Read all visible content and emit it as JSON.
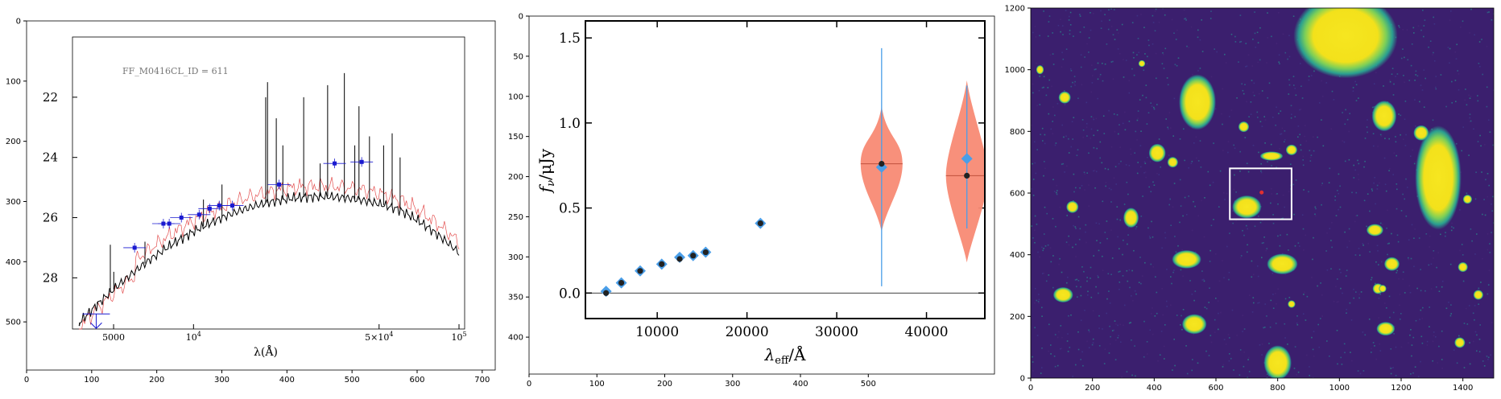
{
  "chart_data": [
    {
      "type": "scatter",
      "panel": "sed-image",
      "x_ticks": [
        0,
        100,
        200,
        300,
        400,
        500,
        600,
        700
      ],
      "y_ticks": [
        0,
        100,
        200,
        300,
        400,
        500
      ],
      "xlim": [
        0,
        720
      ],
      "ylim": [
        580,
        0
      ],
      "inner": {
        "title": "FF_M0416CL_ID = 611",
        "xlabel": "λ(Å)",
        "x_tick_labels": [
          "5000",
          "10^4",
          "5×10^4",
          "10^5"
        ],
        "x_tick_values": [
          5000,
          10000,
          50000,
          100000
        ],
        "y_tick_labels": [
          "22",
          "24",
          "26",
          "28"
        ],
        "y_tick_values": [
          22,
          24,
          26,
          28
        ],
        "xlim": [
          3500,
          105000
        ],
        "ylim": [
          20.0,
          29.7
        ],
        "photometry_ab": [
          {
            "x": 6000,
            "y": 27.0
          },
          {
            "x": 7700,
            "y": 26.2
          },
          {
            "x": 8100,
            "y": 26.2
          },
          {
            "x": 9000,
            "y": 26.0
          },
          {
            "x": 10500,
            "y": 25.9
          },
          {
            "x": 11500,
            "y": 25.7
          },
          {
            "x": 12500,
            "y": 25.6
          },
          {
            "x": 14000,
            "y": 25.6
          },
          {
            "x": 21000,
            "y": 24.9
          },
          {
            "x": 34000,
            "y": 24.2
          },
          {
            "x": 43000,
            "y": 24.15
          }
        ],
        "upper_limit": {
          "x": 4300,
          "y": 29.2
        }
      }
    },
    {
      "type": "scatter",
      "panel": "flux-violin",
      "xlabel": "λ_eff/Å",
      "ylabel": "f_ν/μJy",
      "x_ticks": [
        10000,
        20000,
        30000,
        40000
      ],
      "y_ticks": [
        0.0,
        0.5,
        1.0,
        1.5
      ],
      "xlim": [
        2000,
        46500
      ],
      "ylim": [
        -0.15,
        1.6
      ],
      "outer_x_ticks": [
        0,
        100,
        200,
        300,
        400,
        500
      ],
      "outer_y_ticks": [
        0,
        50,
        100,
        150,
        200,
        250,
        300,
        350,
        400
      ],
      "observed": [
        {
          "x": 4300,
          "y": 0.01
        },
        {
          "x": 6000,
          "y": 0.06
        },
        {
          "x": 8100,
          "y": 0.13
        },
        {
          "x": 10500,
          "y": 0.17
        },
        {
          "x": 12500,
          "y": 0.21
        },
        {
          "x": 14000,
          "y": 0.22
        },
        {
          "x": 15400,
          "y": 0.24
        },
        {
          "x": 21500,
          "y": 0.41
        },
        {
          "x": 35000,
          "y": 0.74
        },
        {
          "x": 44500,
          "y": 0.79
        }
      ],
      "model": [
        {
          "x": 4300,
          "y": 0.0
        },
        {
          "x": 6000,
          "y": 0.06
        },
        {
          "x": 8100,
          "y": 0.13
        },
        {
          "x": 10500,
          "y": 0.17
        },
        {
          "x": 12500,
          "y": 0.2
        },
        {
          "x": 14000,
          "y": 0.22
        },
        {
          "x": 15400,
          "y": 0.24
        },
        {
          "x": 21500,
          "y": 0.41
        },
        {
          "x": 35000,
          "y": 0.76
        },
        {
          "x": 44500,
          "y": 0.69
        }
      ],
      "error_bars": [
        {
          "x": 35000,
          "low": 0.04,
          "high": 1.44
        },
        {
          "x": 44500,
          "low": 0.38,
          "high": 1.22
        }
      ],
      "violins": [
        {
          "x": 35000,
          "low": 0.36,
          "high": 1.1,
          "mid": 0.76
        },
        {
          "x": 44500,
          "low": 0.18,
          "high": 1.25,
          "mid": 0.69
        }
      ],
      "colors": {
        "observed": "#4a9ee8",
        "violin": "#f88a74",
        "model": "#222222"
      }
    },
    {
      "type": "heatmap",
      "panel": "cutout",
      "x_ticks": [
        0,
        200,
        400,
        600,
        800,
        1000,
        1200,
        1400
      ],
      "y_ticks": [
        0,
        200,
        400,
        600,
        800,
        1000,
        1200
      ],
      "xlim": [
        0,
        1500
      ],
      "ylim": [
        0,
        1200
      ],
      "sources": [
        {
          "x": 1020,
          "y": 1110,
          "rx": 135,
          "ry": 110
        },
        {
          "x": 1320,
          "y": 650,
          "rx": 60,
          "ry": 135
        },
        {
          "x": 540,
          "y": 895,
          "rx": 48,
          "ry": 72
        },
        {
          "x": 1145,
          "y": 850,
          "rx": 32,
          "ry": 40
        },
        {
          "x": 700,
          "y": 555,
          "rx": 38,
          "ry": 30
        },
        {
          "x": 505,
          "y": 385,
          "rx": 38,
          "ry": 24
        },
        {
          "x": 815,
          "y": 370,
          "rx": 40,
          "ry": 27
        },
        {
          "x": 410,
          "y": 730,
          "rx": 22,
          "ry": 24
        },
        {
          "x": 1265,
          "y": 795,
          "rx": 20,
          "ry": 20
        },
        {
          "x": 105,
          "y": 270,
          "rx": 26,
          "ry": 20
        },
        {
          "x": 530,
          "y": 175,
          "rx": 32,
          "ry": 26
        },
        {
          "x": 1150,
          "y": 160,
          "rx": 24,
          "ry": 18
        },
        {
          "x": 135,
          "y": 555,
          "rx": 16,
          "ry": 16
        },
        {
          "x": 325,
          "y": 520,
          "rx": 20,
          "ry": 26
        },
        {
          "x": 780,
          "y": 720,
          "rx": 30,
          "ry": 12
        },
        {
          "x": 845,
          "y": 740,
          "rx": 15,
          "ry": 14
        },
        {
          "x": 690,
          "y": 815,
          "rx": 14,
          "ry": 14
        },
        {
          "x": 110,
          "y": 910,
          "rx": 16,
          "ry": 16
        },
        {
          "x": 460,
          "y": 700,
          "rx": 14,
          "ry": 14
        },
        {
          "x": 1115,
          "y": 480,
          "rx": 22,
          "ry": 16
        },
        {
          "x": 1170,
          "y": 370,
          "rx": 20,
          "ry": 18
        },
        {
          "x": 1125,
          "y": 290,
          "rx": 14,
          "ry": 14
        },
        {
          "x": 1450,
          "y": 270,
          "rx": 13,
          "ry": 13
        },
        {
          "x": 1400,
          "y": 360,
          "rx": 13,
          "ry": 13
        },
        {
          "x": 800,
          "y": 50,
          "rx": 36,
          "ry": 45
        },
        {
          "x": 1390,
          "y": 115,
          "rx": 14,
          "ry": 14
        },
        {
          "x": 1415,
          "y": 580,
          "rx": 12,
          "ry": 12
        },
        {
          "x": 845,
          "y": 240,
          "rx": 10,
          "ry": 10
        },
        {
          "x": 360,
          "y": 1020,
          "rx": 9,
          "ry": 9
        },
        {
          "x": 1140,
          "y": 290,
          "rx": 10,
          "ry": 10
        },
        {
          "x": 30,
          "y": 1000,
          "rx": 10,
          "ry": 12
        }
      ],
      "selection_box": {
        "x0": 645,
        "x1": 845,
        "y0": 515,
        "y1": 680
      },
      "target": {
        "x": 748,
        "y": 602
      },
      "colors": {
        "background": "#3b1f6e",
        "source": "#f3e11b",
        "halo": "#27a89a",
        "box": "#ffffff",
        "target": "#e03030"
      }
    }
  ]
}
